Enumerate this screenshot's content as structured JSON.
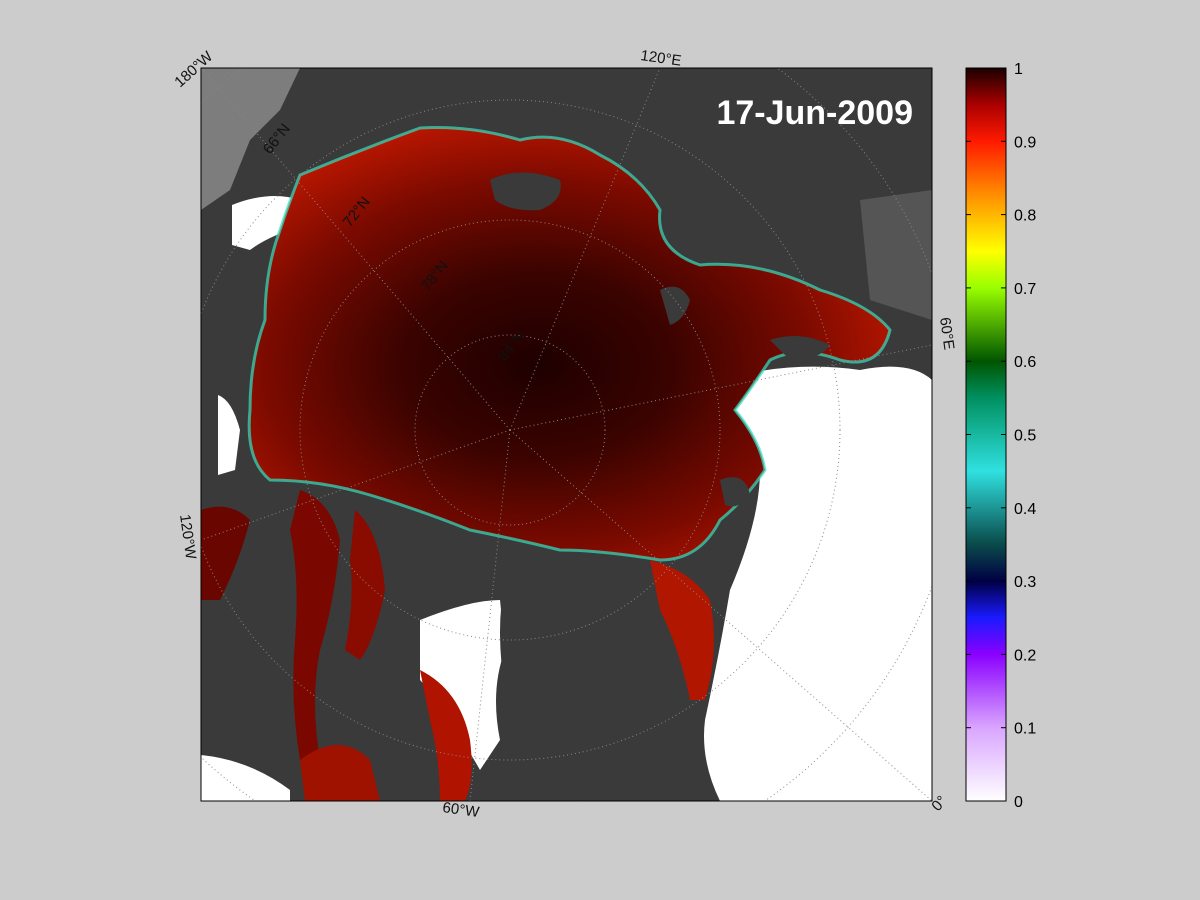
{
  "map": {
    "date_label": "17-Jun-2009",
    "longitude_labels": {
      "w180": "180°W",
      "e120": "120°E",
      "e60": "60°E",
      "w120": "120°W",
      "w60": "60°W",
      "zero": "0°"
    },
    "latitude_labels": {
      "n66": "66°N",
      "n72": "72°N",
      "n78": "78°N",
      "n84": "84°N"
    },
    "colors": {
      "background": "#cccccc",
      "land": "#3a3a3a",
      "land_alt": "#7d7d7d",
      "open_water": "#ffffff",
      "ice_core": "#220000",
      "ice_mid": "#8a0a00",
      "ice_edge": "#c41800"
    }
  },
  "colorbar": {
    "min": 0,
    "max": 1,
    "ticks": [
      "0",
      "0.1",
      "0.2",
      "0.3",
      "0.4",
      "0.5",
      "0.6",
      "0.7",
      "0.8",
      "0.9",
      "1"
    ],
    "tick_values": [
      0,
      0.1,
      0.2,
      0.3,
      0.4,
      0.5,
      0.6,
      0.7,
      0.8,
      0.9,
      1
    ],
    "stops": [
      {
        "v": 0.0,
        "c": "#ffffff"
      },
      {
        "v": 0.1,
        "c": "#d9a5ff"
      },
      {
        "v": 0.2,
        "c": "#8a00ff"
      },
      {
        "v": 0.25,
        "c": "#1a1aff"
      },
      {
        "v": 0.3,
        "c": "#000044"
      },
      {
        "v": 0.35,
        "c": "#0a4a4a"
      },
      {
        "v": 0.45,
        "c": "#30e0e0"
      },
      {
        "v": 0.55,
        "c": "#009060"
      },
      {
        "v": 0.6,
        "c": "#005500"
      },
      {
        "v": 0.7,
        "c": "#99ff00"
      },
      {
        "v": 0.75,
        "c": "#ffff00"
      },
      {
        "v": 0.82,
        "c": "#ff9900"
      },
      {
        "v": 0.9,
        "c": "#ff1a00"
      },
      {
        "v": 0.95,
        "c": "#aa0000"
      },
      {
        "v": 1.0,
        "c": "#1a0000"
      }
    ]
  }
}
